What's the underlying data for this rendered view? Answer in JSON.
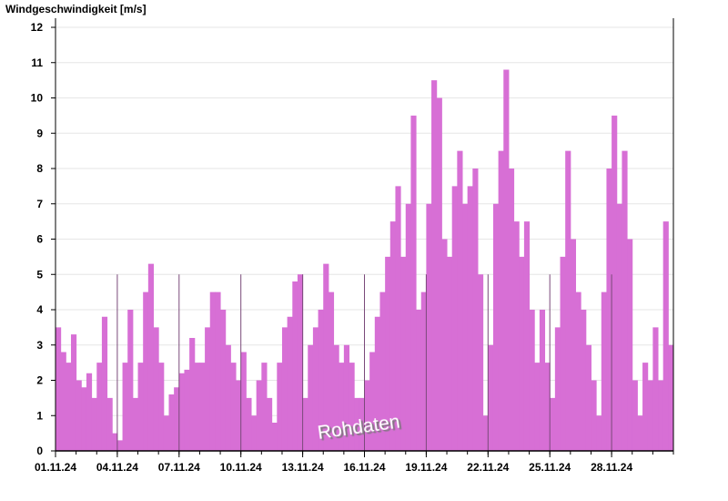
{
  "chart_data": {
    "type": "bar",
    "title": "",
    "ylabel": "Windgeschwindigkeit [m/s]",
    "xlabel": "",
    "ylim": [
      0,
      12
    ],
    "yticks": [
      "0",
      "1",
      "2",
      "3",
      "4",
      "5",
      "6",
      "7",
      "8",
      "9",
      "10",
      "11",
      "12"
    ],
    "xticks": [
      "01.11.24",
      "04.11.24",
      "07.11.24",
      "10.11.24",
      "13.11.24",
      "16.11.24",
      "19.11.24",
      "22.11.24",
      "25.11.24",
      "28.11.24"
    ],
    "x_range": [
      "01.11.24",
      "30.11.24 24:00"
    ],
    "resolution": "6h (approximate)",
    "grid": true,
    "annotation": "Rohdaten",
    "color": "#d76fd5",
    "values": [
      3.5,
      2.8,
      2.5,
      3.3,
      2.0,
      1.8,
      2.2,
      1.5,
      2.5,
      3.8,
      1.5,
      0.5,
      0.3,
      2.5,
      4.0,
      1.5,
      2.5,
      4.5,
      5.3,
      3.5,
      2.5,
      1.0,
      1.6,
      1.8,
      2.2,
      2.3,
      3.2,
      2.5,
      2.5,
      3.5,
      4.5,
      4.5,
      4.0,
      3.0,
      2.5,
      2.0,
      2.8,
      1.5,
      1.0,
      2.0,
      2.5,
      1.5,
      0.8,
      2.5,
      3.5,
      3.8,
      4.8,
      5.0,
      1.5,
      3.0,
      3.5,
      4.0,
      5.3,
      4.5,
      3.0,
      2.5,
      3.0,
      2.5,
      1.5,
      1.5,
      2.0,
      2.8,
      3.8,
      4.5,
      5.5,
      6.5,
      7.5,
      5.5,
      7.0,
      9.5,
      4.0,
      4.5,
      7.0,
      10.5,
      10.0,
      6.0,
      5.5,
      7.5,
      8.5,
      7.0,
      7.5,
      8.0,
      5.0,
      1.0,
      3.0,
      7.0,
      8.5,
      10.8,
      8.0,
      6.5,
      5.5,
      6.5,
      4.0,
      2.5,
      4.0,
      2.5,
      1.5,
      3.5,
      5.5,
      8.5,
      6.0,
      4.5,
      4.0,
      3.0,
      2.0,
      1.0,
      4.5,
      8.0,
      9.5,
      7.0,
      8.5,
      6.0,
      2.0,
      1.0,
      2.5,
      2.0,
      3.5,
      2.0,
      6.5,
      3.0
    ]
  }
}
